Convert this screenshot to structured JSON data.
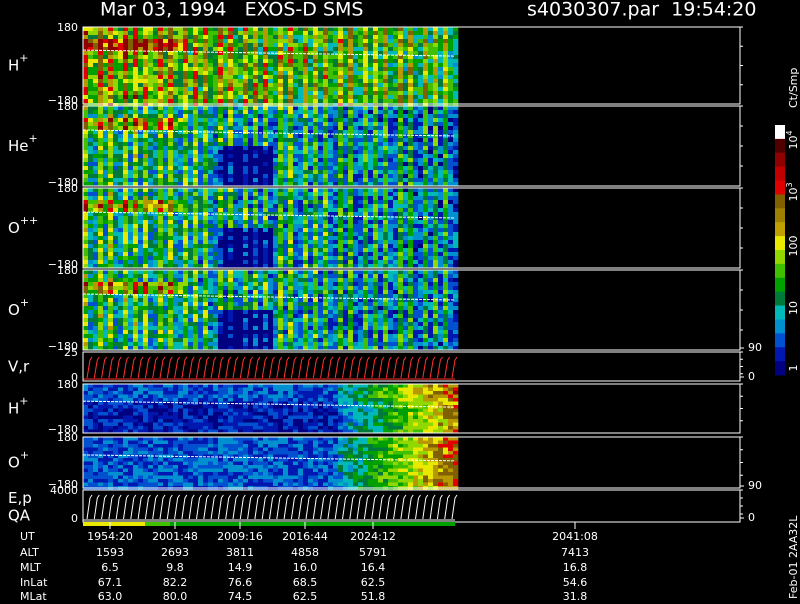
{
  "header": {
    "title": "Mar 03, 1994   EXOS-D SMS",
    "file": "s4030307.par  19:54:20"
  },
  "panels": [
    {
      "label": {
        "name": "H",
        "charge": "+"
      },
      "left_ticks": [
        "180",
        "−180"
      ],
      "right_ticks": []
    },
    {
      "label": {
        "name": "He",
        "charge": "+"
      },
      "left_ticks": [
        "180",
        "−180"
      ],
      "right_ticks": []
    },
    {
      "label": {
        "name": "O",
        "charge": "++"
      },
      "left_ticks": [
        "180",
        "−180"
      ],
      "right_ticks": []
    },
    {
      "label": {
        "name": "O",
        "charge": "+"
      },
      "left_ticks": [
        "180",
        "−180"
      ],
      "right_ticks": []
    },
    {
      "label": {
        "name": "V,r",
        "charge": ""
      },
      "left_ticks": [
        "25",
        "0"
      ],
      "right_ticks": [
        "90",
        "0"
      ]
    },
    {
      "label": {
        "name": "H",
        "charge": "+"
      },
      "left_ticks": [
        "180",
        "−180"
      ],
      "right_ticks": []
    },
    {
      "label": {
        "name": "O",
        "charge": "+"
      },
      "left_ticks": [
        "180",
        "−180"
      ],
      "right_ticks": []
    },
    {
      "label": {
        "name": "E,p",
        "charge": "",
        "line2": "QA"
      },
      "left_ticks": [
        "4000",
        "0"
      ],
      "right_ticks": [
        "90",
        "0"
      ]
    }
  ],
  "colorbar": {
    "unit": "Ct/Smp",
    "labels": [
      {
        "base": "10",
        "exp": "4"
      },
      {
        "base": "10",
        "exp": "3"
      },
      {
        "base": "100",
        "exp": ""
      },
      {
        "base": "10",
        "exp": ""
      },
      {
        "base": "1",
        "exp": ""
      }
    ]
  },
  "table": {
    "row_labels": [
      "UT",
      "ALT",
      "MLT",
      "InLat",
      "MLat"
    ],
    "rows": [
      [
        "1954:20",
        "2001:48",
        "2009:16",
        "2016:44",
        "2024:12",
        "2041:08"
      ],
      [
        "1593",
        "2693",
        "3811",
        "4858",
        "5791",
        "7413"
      ],
      [
        "6.5",
        "9.8",
        "14.9",
        "16.0",
        "16.4",
        "16.8"
      ],
      [
        "67.1",
        "82.2",
        "76.6",
        "68.5",
        "62.5",
        "54.6"
      ],
      [
        "63.0",
        "80.0",
        "74.5",
        "62.5",
        "51.8",
        "31.8"
      ]
    ]
  },
  "footer": "Feb-01 2AA32L"
}
